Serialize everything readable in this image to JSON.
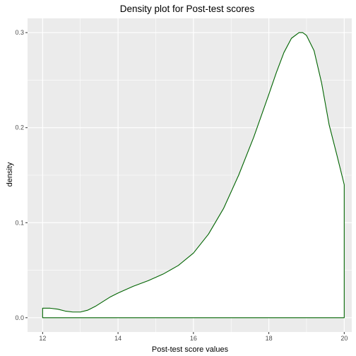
{
  "chart_data": {
    "type": "area",
    "title": "Density plot for Post-test scores",
    "xlabel": "Post-test score values",
    "ylabel": "density",
    "xlim": [
      11.6,
      20.2
    ],
    "ylim": [
      -0.015,
      0.315
    ],
    "xticks": [
      12,
      14,
      16,
      18,
      20
    ],
    "yticks": [
      0.0,
      0.1,
      0.2,
      0.3
    ],
    "xtick_labels": [
      "12",
      "14",
      "16",
      "18",
      "20"
    ],
    "ytick_labels": [
      "0.0",
      "0.1",
      "0.2",
      "0.3"
    ],
    "grid": true,
    "fill_color": "#ffffff",
    "line_color": "#006400",
    "panel_color": "#ebebeb",
    "series": [
      {
        "name": "density",
        "x": [
          12.0,
          12.2,
          12.4,
          12.6,
          12.8,
          13.0,
          13.2,
          13.4,
          13.6,
          13.8,
          14.0,
          14.4,
          14.8,
          15.2,
          15.6,
          16.0,
          16.4,
          16.8,
          17.2,
          17.6,
          18.0,
          18.2,
          18.4,
          18.6,
          18.8,
          18.9,
          19.0,
          19.2,
          19.4,
          19.6,
          19.8,
          20.0
        ],
        "y": [
          0.01,
          0.01,
          0.009,
          0.007,
          0.006,
          0.006,
          0.008,
          0.012,
          0.017,
          0.022,
          0.026,
          0.033,
          0.039,
          0.046,
          0.055,
          0.068,
          0.088,
          0.115,
          0.15,
          0.19,
          0.235,
          0.258,
          0.279,
          0.294,
          0.3,
          0.3,
          0.297,
          0.281,
          0.247,
          0.203,
          0.172,
          0.14
        ]
      }
    ]
  }
}
